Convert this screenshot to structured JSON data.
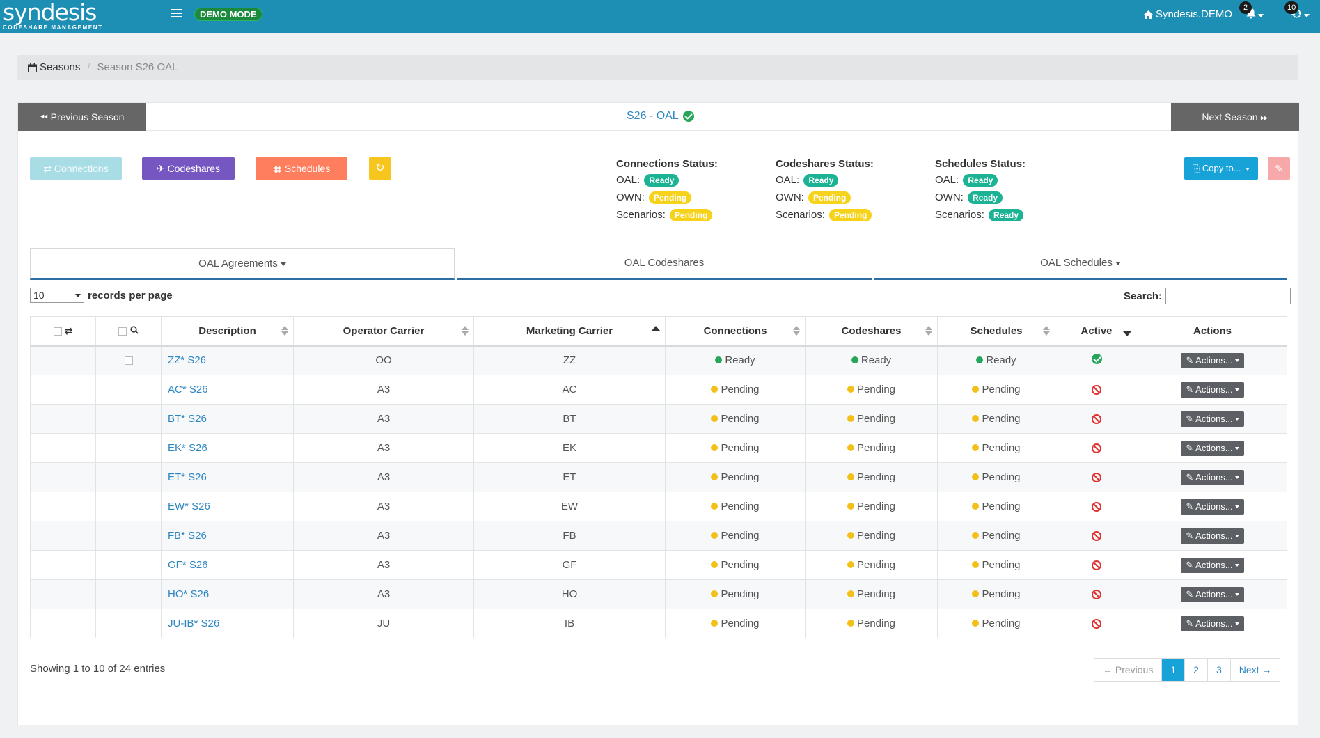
{
  "navbar": {
    "brand": "syndesis",
    "brand_sub": "CODESHARE MANAGEMENT",
    "mode_badge": "DEMO MODE",
    "home_label": "Syndesis.DEMO",
    "notifications_count": "2",
    "sync_count": "10"
  },
  "breadcrumb": {
    "root": "Seasons",
    "current": "Season S26 OAL"
  },
  "season": {
    "prev_label": "Previous Season",
    "title": "S26 - OAL",
    "next_label": "Next Season"
  },
  "toolbar": {
    "connections_label": "Connections",
    "codeshares_label": "Codeshares",
    "schedules_label": "Schedules",
    "copy_label": "Copy to..."
  },
  "status": {
    "connections": {
      "heading": "Connections Status:",
      "rows": [
        {
          "label": "OAL:",
          "value": "Ready"
        },
        {
          "label": "OWN:",
          "value": "Pending"
        },
        {
          "label": "Scenarios:",
          "value": "Pending"
        }
      ]
    },
    "codeshares": {
      "heading": "Codeshares Status:",
      "rows": [
        {
          "label": "OAL:",
          "value": "Ready"
        },
        {
          "label": "OWN:",
          "value": "Pending"
        },
        {
          "label": "Scenarios:",
          "value": "Pending"
        }
      ]
    },
    "schedules": {
      "heading": "Schedules Status:",
      "rows": [
        {
          "label": "OAL:",
          "value": "Ready"
        },
        {
          "label": "OWN:",
          "value": "Ready"
        },
        {
          "label": "Scenarios:",
          "value": "Ready"
        }
      ]
    }
  },
  "subtabs": [
    "OAL Agreements",
    "OAL Codeshares",
    "OAL Schedules"
  ],
  "table_controls": {
    "length_value": "10",
    "length_label": "records per page",
    "search_label": "Search:",
    "search_value": ""
  },
  "table": {
    "columns": [
      "Description",
      "Operator Carrier",
      "Marketing Carrier",
      "Connections",
      "Codeshares",
      "Schedules",
      "Active",
      "Actions"
    ],
    "action_label": "Actions...",
    "rows": [
      {
        "description": "ZZ* S26",
        "operator": "OO",
        "marketing": "ZZ",
        "connections": "Ready",
        "codeshares": "Ready",
        "schedules": "Ready",
        "active": true
      },
      {
        "description": "AC* S26",
        "operator": "A3",
        "marketing": "AC",
        "connections": "Pending",
        "codeshares": "Pending",
        "schedules": "Pending",
        "active": false
      },
      {
        "description": "BT* S26",
        "operator": "A3",
        "marketing": "BT",
        "connections": "Pending",
        "codeshares": "Pending",
        "schedules": "Pending",
        "active": false
      },
      {
        "description": "EK* S26",
        "operator": "A3",
        "marketing": "EK",
        "connections": "Pending",
        "codeshares": "Pending",
        "schedules": "Pending",
        "active": false
      },
      {
        "description": "ET* S26",
        "operator": "A3",
        "marketing": "ET",
        "connections": "Pending",
        "codeshares": "Pending",
        "schedules": "Pending",
        "active": false
      },
      {
        "description": "EW* S26",
        "operator": "A3",
        "marketing": "EW",
        "connections": "Pending",
        "codeshares": "Pending",
        "schedules": "Pending",
        "active": false
      },
      {
        "description": "FB* S26",
        "operator": "A3",
        "marketing": "FB",
        "connections": "Pending",
        "codeshares": "Pending",
        "schedules": "Pending",
        "active": false
      },
      {
        "description": "GF* S26",
        "operator": "A3",
        "marketing": "GF",
        "connections": "Pending",
        "codeshares": "Pending",
        "schedules": "Pending",
        "active": false
      },
      {
        "description": "HO* S26",
        "operator": "A3",
        "marketing": "HO",
        "connections": "Pending",
        "codeshares": "Pending",
        "schedules": "Pending",
        "active": false
      },
      {
        "description": "JU-IB* S26",
        "operator": "JU",
        "marketing": "IB",
        "connections": "Pending",
        "codeshares": "Pending",
        "schedules": "Pending",
        "active": false
      }
    ]
  },
  "footer": {
    "info": "Showing 1 to 10 of 24 entries",
    "pager": {
      "previous": "← Previous",
      "pages": [
        "1",
        "2",
        "3"
      ],
      "active_page": "1",
      "next": "Next →"
    }
  },
  "colors": {
    "navbar": "#1d8fb4",
    "ready": "#1cb394",
    "pending": "#f7d21a",
    "codeshares_button": "#7656c1",
    "schedules_button": "#ff7e5e"
  }
}
